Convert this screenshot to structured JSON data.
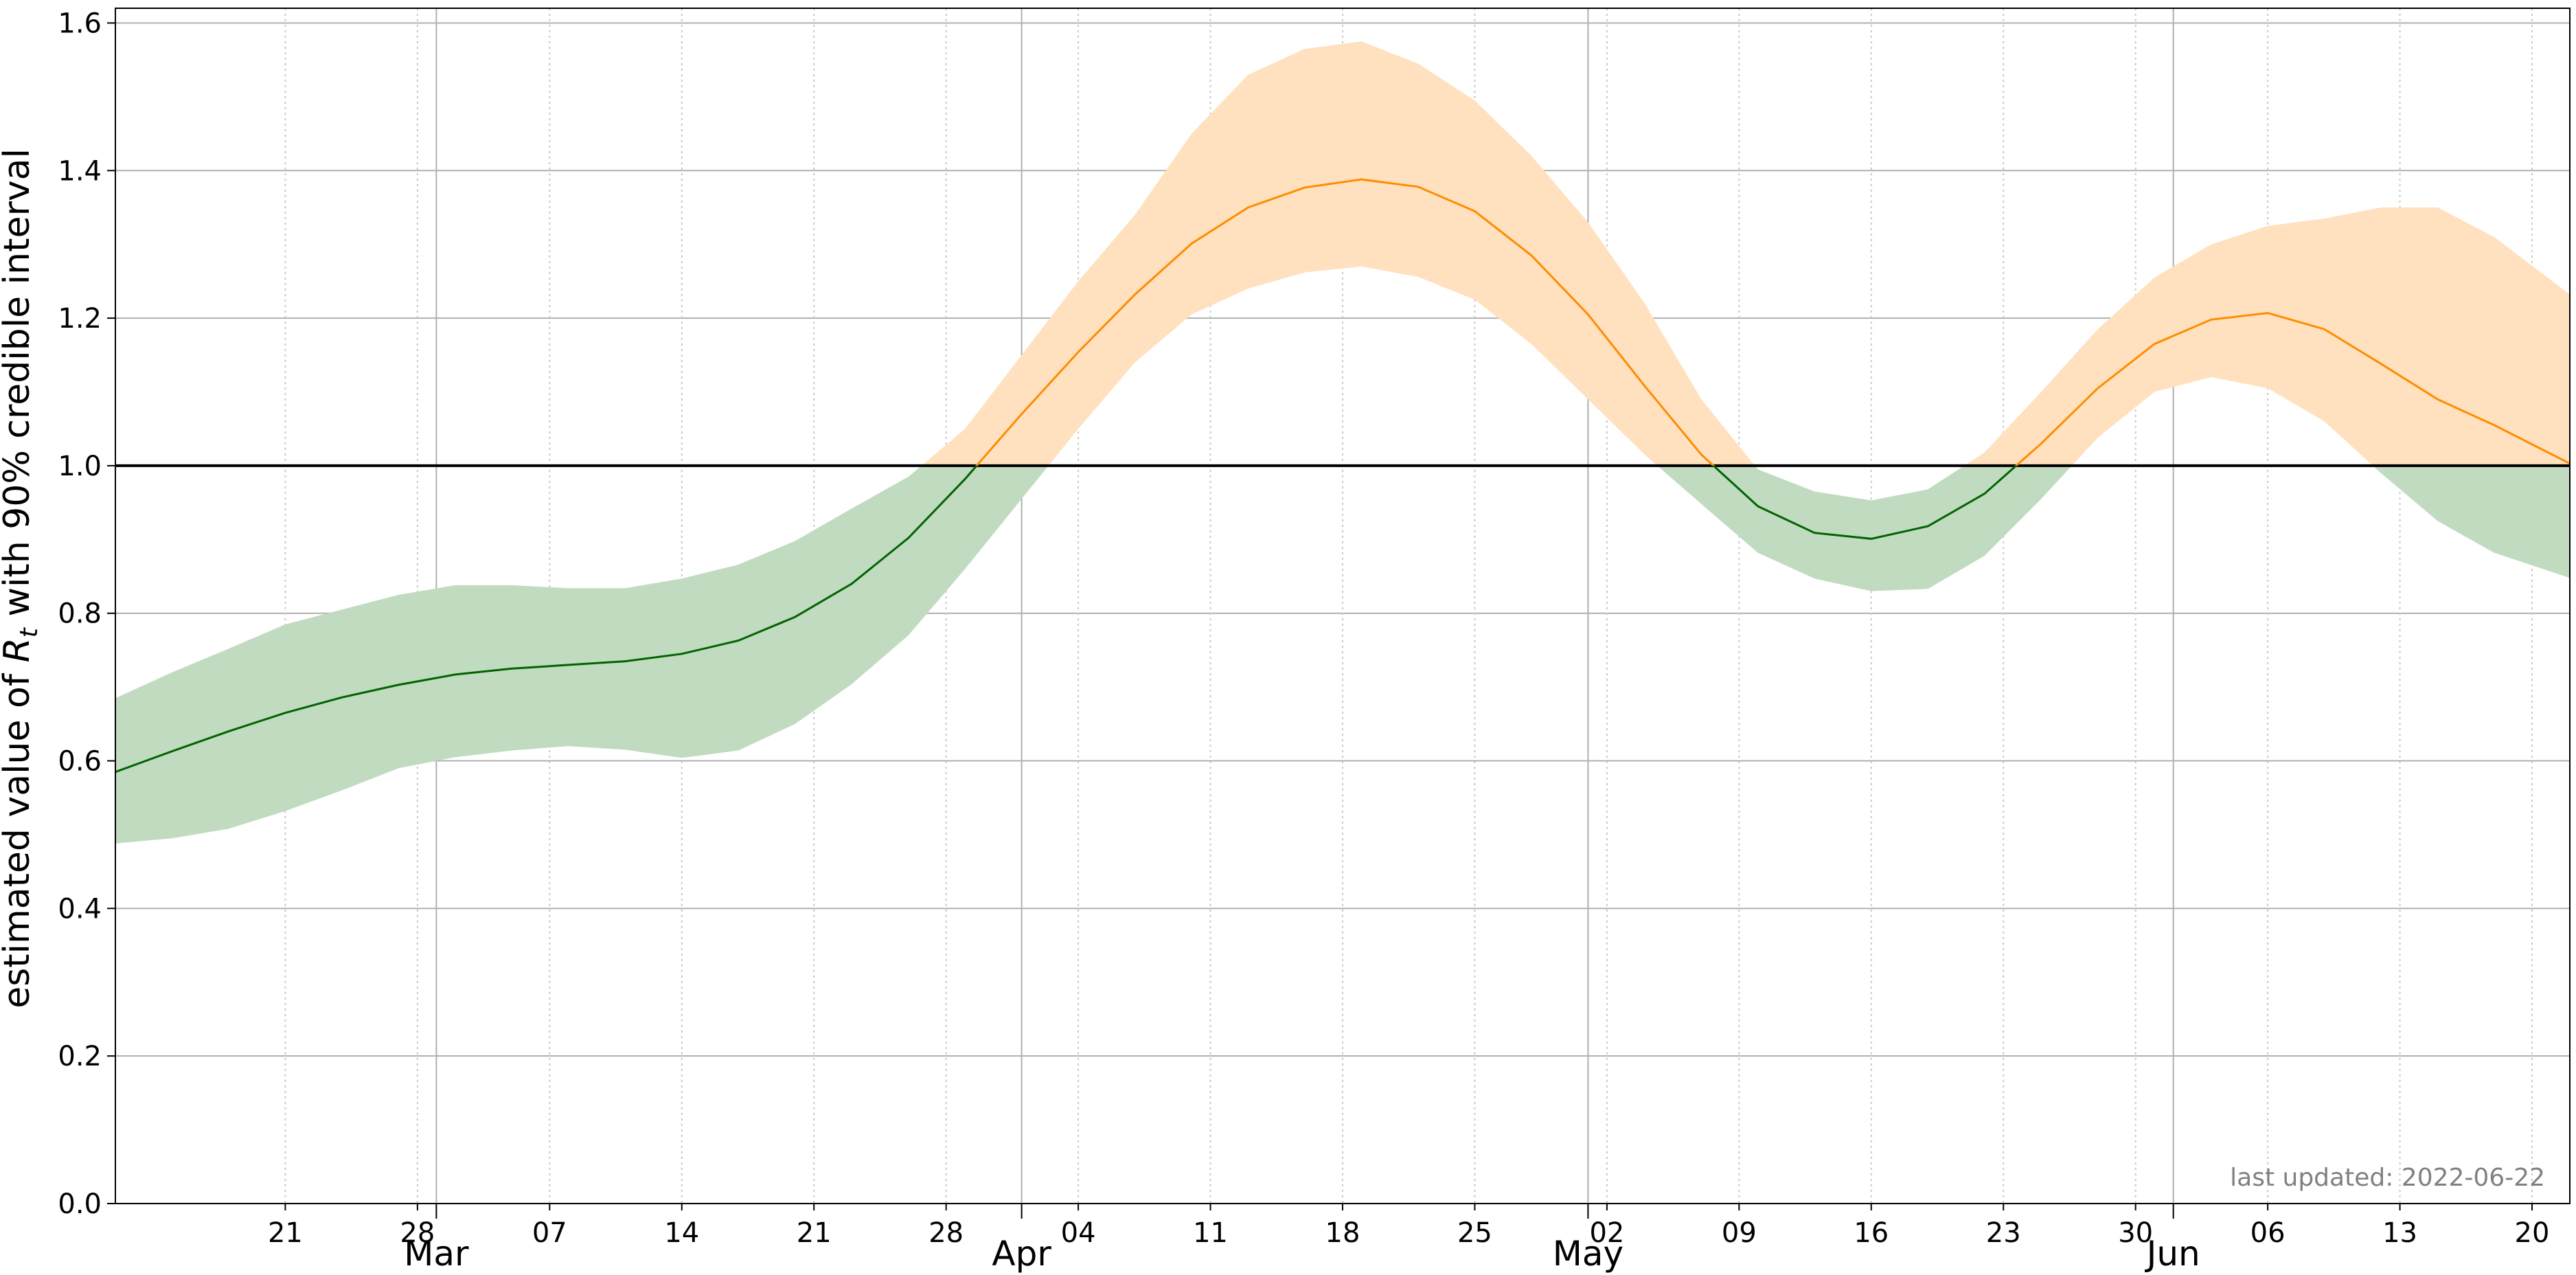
{
  "chart_data": {
    "type": "area",
    "title": "",
    "xlabel": "",
    "ylabel": "estimated value of R_t with 90% credible interval",
    "ylabel_parts": {
      "prefix": "estimated value of ",
      "symbol": "R",
      "subscript": "t",
      "suffix": " with 90% credible interval"
    },
    "xlim": [
      "2022-02-12",
      "2022-06-22"
    ],
    "ylim": [
      0.0,
      1.62
    ],
    "y_ticks": [
      0.0,
      0.2,
      0.4,
      0.6,
      0.8,
      1.0,
      1.2,
      1.4,
      1.6
    ],
    "y_tick_labels": [
      "0.0",
      "0.2",
      "0.4",
      "0.6",
      "0.8",
      "1.0",
      "1.2",
      "1.4",
      "1.6"
    ],
    "x_minor_ticks": [
      {
        "date": "2022-02-21",
        "label": "21"
      },
      {
        "date": "2022-02-28",
        "label": "28"
      },
      {
        "date": "2022-03-07",
        "label": "07"
      },
      {
        "date": "2022-03-14",
        "label": "14"
      },
      {
        "date": "2022-03-21",
        "label": "21"
      },
      {
        "date": "2022-03-28",
        "label": "28"
      },
      {
        "date": "2022-04-04",
        "label": "04"
      },
      {
        "date": "2022-04-11",
        "label": "11"
      },
      {
        "date": "2022-04-18",
        "label": "18"
      },
      {
        "date": "2022-04-25",
        "label": "25"
      },
      {
        "date": "2022-05-02",
        "label": "02"
      },
      {
        "date": "2022-05-09",
        "label": "09"
      },
      {
        "date": "2022-05-16",
        "label": "16"
      },
      {
        "date": "2022-05-23",
        "label": "23"
      },
      {
        "date": "2022-05-30",
        "label": "30"
      },
      {
        "date": "2022-06-06",
        "label": "06"
      },
      {
        "date": "2022-06-13",
        "label": "13"
      },
      {
        "date": "2022-06-20",
        "label": "20"
      }
    ],
    "x_major_ticks": [
      {
        "date": "2022-03-01",
        "label": "Mar"
      },
      {
        "date": "2022-04-01",
        "label": "Apr"
      },
      {
        "date": "2022-05-01",
        "label": "May"
      },
      {
        "date": "2022-06-01",
        "label": "Jun"
      }
    ],
    "reference_line": {
      "y": 1.0,
      "color": "#000000"
    },
    "grid": true,
    "series": [
      {
        "x": [
          "2022-02-12",
          "2022-02-15",
          "2022-02-18",
          "2022-02-21",
          "2022-02-24",
          "2022-02-27",
          "2022-03-02",
          "2022-03-05",
          "2022-03-08",
          "2022-03-11",
          "2022-03-14",
          "2022-03-17",
          "2022-03-20",
          "2022-03-23",
          "2022-03-26",
          "2022-03-29",
          "2022-04-01",
          "2022-04-04",
          "2022-04-07",
          "2022-04-10",
          "2022-04-13",
          "2022-04-16",
          "2022-04-19",
          "2022-04-22",
          "2022-04-25",
          "2022-04-28",
          "2022-05-01",
          "2022-05-04",
          "2022-05-07",
          "2022-05-10",
          "2022-05-13",
          "2022-05-16",
          "2022-05-19",
          "2022-05-22",
          "2022-05-25",
          "2022-05-28",
          "2022-05-31",
          "2022-06-03",
          "2022-06-06",
          "2022-06-09",
          "2022-06-12",
          "2022-06-15",
          "2022-06-18",
          "2022-06-22"
        ],
        "median": [
          0.585,
          0.613,
          0.64,
          0.665,
          0.686,
          0.703,
          0.717,
          0.725,
          0.73,
          0.735,
          0.745,
          0.763,
          0.795,
          0.84,
          0.902,
          0.982,
          1.07,
          1.154,
          1.232,
          1.301,
          1.35,
          1.377,
          1.388,
          1.378,
          1.345,
          1.285,
          1.205,
          1.108,
          1.015,
          0.945,
          0.909,
          0.901,
          0.918,
          0.962,
          1.03,
          1.105,
          1.165,
          1.198,
          1.207,
          1.185,
          1.138,
          1.09,
          1.055,
          1.003
        ],
        "lower": [
          0.488,
          0.495,
          0.508,
          0.532,
          0.56,
          0.59,
          0.605,
          0.614,
          0.62,
          0.615,
          0.604,
          0.614,
          0.65,
          0.704,
          0.77,
          0.86,
          0.955,
          1.05,
          1.14,
          1.205,
          1.24,
          1.262,
          1.27,
          1.256,
          1.225,
          1.165,
          1.09,
          1.015,
          0.948,
          0.882,
          0.847,
          0.83,
          0.833,
          0.878,
          0.955,
          1.038,
          1.1,
          1.12,
          1.105,
          1.06,
          0.99,
          0.925,
          0.882,
          0.848
        ],
        "upper": [
          0.685,
          0.72,
          0.752,
          0.785,
          0.805,
          0.825,
          0.838,
          0.838,
          0.834,
          0.834,
          0.847,
          0.866,
          0.898,
          0.942,
          0.985,
          1.05,
          1.15,
          1.25,
          1.34,
          1.45,
          1.53,
          1.565,
          1.575,
          1.545,
          1.495,
          1.42,
          1.33,
          1.22,
          1.09,
          0.995,
          0.965,
          0.953,
          0.968,
          1.018,
          1.1,
          1.185,
          1.255,
          1.3,
          1.325,
          1.335,
          1.35,
          1.35,
          1.31,
          1.232
        ]
      }
    ],
    "colors": {
      "line_below": "#006400",
      "line_above": "#ff8c00",
      "band_below": "#c1dbc1",
      "band_above": "#ffe1bf"
    },
    "annotation": "last updated: 2022-06-22"
  }
}
